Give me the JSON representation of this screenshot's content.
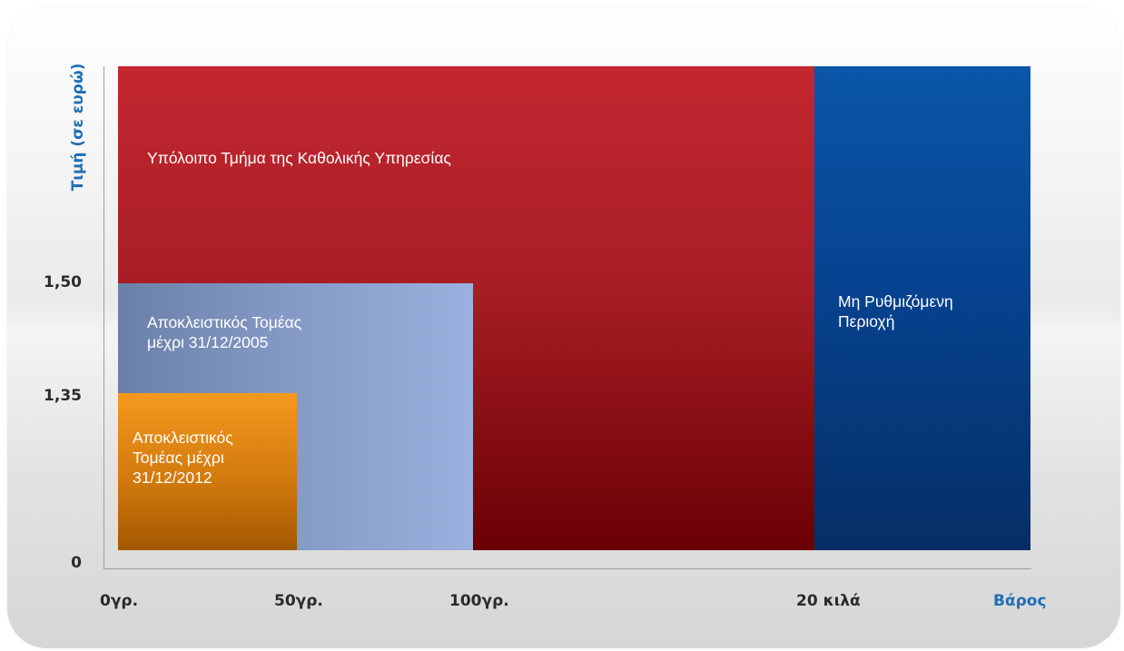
{
  "diagram": {
    "axis_title_y": "Τιμή (σε ευρώ)",
    "axis_title_x": "Βάρος",
    "y_ticks": [
      "1,50",
      "1,35",
      "0"
    ],
    "x_ticks": [
      "0γρ.",
      "50γρ.",
      "100γρ.",
      "20 κιλά"
    ],
    "regions": {
      "rest": {
        "label": "Υπόλοιπο Τμήμα της Καθολικής Υπηρεσίας",
        "color": "#b8232b"
      },
      "exclusive_2005": {
        "label_lines": [
          "Αποκλειστικός Τομέας",
          "μέχρι 31/12/2005"
        ],
        "color": "#8398c4"
      },
      "exclusive_2012": {
        "label_lines": [
          "Αποκλειστικός",
          "Τομέας μέχρι",
          "31/12/2012"
        ],
        "color": "#e28a16"
      },
      "unregulated": {
        "label_lines": [
          "Μη Ρυθμιζόμενη",
          "Περιοχή"
        ],
        "color": "#064390"
      }
    }
  }
}
